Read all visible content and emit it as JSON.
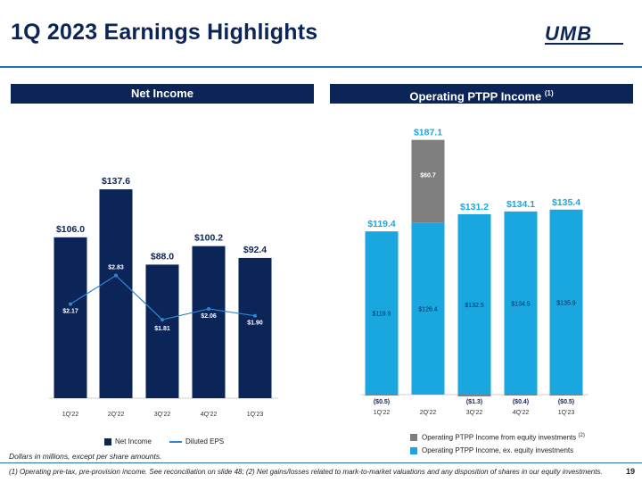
{
  "page": {
    "title": "1Q 2023 Earnings Highlights",
    "logo": "UMB",
    "page_number": "19",
    "note": "Dollars in millions, except per share amounts.",
    "footnote": "(1) Operating pre-tax, pre-provision income. See reconciliation on slide 48; (2) Net gains/losses related to mark-to-market valuations and any disposition of shares in our equity investments.",
    "left_header": "Net Income",
    "right_header": "Operating PTPP Income",
    "right_header_sup": "(1)"
  },
  "colors": {
    "navy": "#0b2559",
    "light_blue": "#1aa7e0",
    "gray": "#7f7f7f",
    "line_blue": "#2e86d1"
  },
  "chart_data": [
    {
      "type": "bar",
      "title": "Net Income",
      "categories": [
        "1Q'22",
        "2Q'22",
        "3Q'22",
        "4Q'22",
        "1Q'23"
      ],
      "series": [
        {
          "name": "Net Income",
          "values": [
            106.0,
            137.6,
            88.0,
            100.2,
            92.4
          ],
          "labels": [
            "$106.0",
            "$137.6",
            "$88.0",
            "$100.2",
            "$92.4"
          ]
        },
        {
          "name": "Diluted EPS",
          "chart": "line",
          "values": [
            2.17,
            2.83,
            1.81,
            2.06,
            1.9
          ],
          "labels": [
            "$2.17",
            "$2.83",
            "$1.81",
            "$2.06",
            "$1.90"
          ]
        }
      ],
      "ylim": [
        0,
        160
      ],
      "eps_ylim": [
        0,
        5.6
      ],
      "legend": [
        "Net Income",
        "Diluted EPS"
      ],
      "legend_position": "bottom"
    },
    {
      "type": "bar",
      "stacked": true,
      "title": "Operating PTPP Income (1)",
      "categories": [
        "1Q'22",
        "2Q'22",
        "3Q'22",
        "4Q'22",
        "1Q'23"
      ],
      "series": [
        {
          "name": "Operating PTPP Income, ex. equity investments",
          "values": [
            119.9,
            126.4,
            132.5,
            134.5,
            135.9
          ],
          "labels": [
            "$119.9",
            "$126.4",
            "$132.5",
            "$134.5",
            "$135.9"
          ]
        },
        {
          "name": "Operating PTPP Income from equity investments",
          "name_sup": "(2)",
          "values": [
            -0.5,
            60.7,
            -1.3,
            -0.4,
            -0.5
          ],
          "labels": [
            "($0.5)",
            "$60.7",
            "($1.3)",
            "($0.4)",
            "($0.5)"
          ]
        }
      ],
      "totals": [
        119.4,
        187.1,
        131.2,
        134.1,
        135.4
      ],
      "total_labels": [
        "$119.4",
        "$187.1",
        "$131.2",
        "$134.1",
        "$135.4"
      ],
      "ylim": [
        0,
        200
      ],
      "legend_position": "bottom"
    }
  ]
}
